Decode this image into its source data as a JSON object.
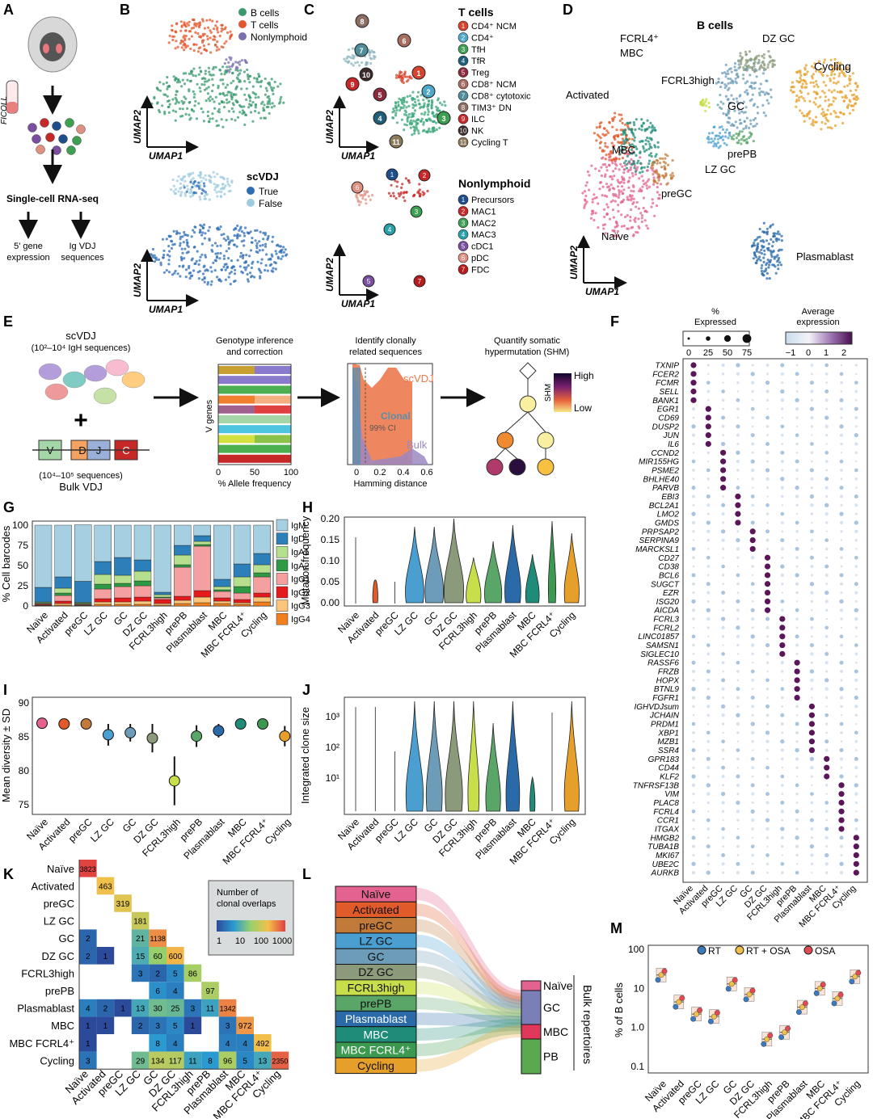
{
  "colors": {
    "b_cells": "#3a9a6e",
    "t_cells": "#e4572e",
    "nonlymphoid": "#7b6fb0",
    "true": "#2e6db4",
    "false": "#9ecbe0",
    "scvdj": "#ec7a4e",
    "clonal": "#5b8ea8",
    "bulk": "#9b88c2",
    "isotypes": [
      "#a6cfe2",
      "#2c7fb8",
      "#b7e08e",
      "#2e9a44",
      "#f5a0a0",
      "#e41a1c",
      "#fdc57a",
      "#f07f1e"
    ],
    "subtypes": [
      "#e3628f",
      "#e05a2a",
      "#c27a3a",
      "#4a9fd0",
      "#6c9cb8",
      "#8a9a7a",
      "#c8de4a",
      "#5aa568",
      "#2a6aa8",
      "#1f8c7a",
      "#3c9a50",
      "#e6a02a"
    ],
    "cohorts": [
      "#3a7bbf",
      "#f0c04a",
      "#e34a53"
    ]
  },
  "panels": [
    "A",
    "B",
    "C",
    "D",
    "E",
    "F",
    "G",
    "H",
    "I",
    "J",
    "K",
    "L",
    "M"
  ],
  "panelA": {
    "ficoll": "FICOLL",
    "seq": "Single-cell RNA-seq",
    "gene_expr": "5' gene\nexpression",
    "vdj": "Ig VDJ\nsequences"
  },
  "panelB": {
    "legend1": [
      "B cells",
      "T cells",
      "Nonlymphoid"
    ],
    "title2": "scVDJ",
    "legend2": [
      "True",
      "False"
    ],
    "axis_x": "UMAP1",
    "axis_y": "UMAP2"
  },
  "panelC": {
    "t_title": "T cells",
    "t_items": [
      {
        "n": "1",
        "label": "CD4⁺ NCM",
        "color": "#d7442e"
      },
      {
        "n": "2",
        "label": "CD4⁺",
        "color": "#4fa7c9"
      },
      {
        "n": "3",
        "label": "TfH",
        "color": "#3e9e52"
      },
      {
        "n": "4",
        "label": "TfR",
        "color": "#1f5f7a"
      },
      {
        "n": "5",
        "label": "Treg",
        "color": "#8a2b3c"
      },
      {
        "n": "6",
        "label": "CD8⁺ NCM",
        "color": "#a66d60"
      },
      {
        "n": "7",
        "label": "CD8⁺ cytotoxic",
        "color": "#4f8e9a"
      },
      {
        "n": "8",
        "label": "TIM3⁺ DN",
        "color": "#8d6e63"
      },
      {
        "n": "9",
        "label": "ILC",
        "color": "#c62828"
      },
      {
        "n": "10",
        "label": "NK",
        "color": "#3a2a2a"
      },
      {
        "n": "11",
        "label": "Cycling T",
        "color": "#8c7a5a"
      }
    ],
    "n_title": "Nonlymphoid",
    "n_items": [
      {
        "n": "1",
        "label": "Precursors",
        "color": "#1f4e8c"
      },
      {
        "n": "2",
        "label": "MAC1",
        "color": "#c62828"
      },
      {
        "n": "3",
        "label": "MAC2",
        "color": "#3e9e52"
      },
      {
        "n": "4",
        "label": "MAC3",
        "color": "#2aa1a8"
      },
      {
        "n": "5",
        "label": "cDC1",
        "color": "#7b4fa0"
      },
      {
        "n": "6",
        "label": "pDC",
        "color": "#e09080"
      },
      {
        "n": "7",
        "label": "FDC",
        "color": "#b71c1c"
      }
    ]
  },
  "panelD": {
    "title": "B cells",
    "labels": [
      "FCRL4⁺",
      "MBC",
      "DZ GC",
      "Activated",
      "FCRL3high",
      "GC",
      "Cycling",
      "MBC",
      "LZ GC",
      "prePB",
      "preGC",
      "Naïve",
      "Plasmablast"
    ]
  },
  "panelE": {
    "scvdj_title": "scVDJ",
    "scvdj_sub": "(10²–10⁴ IgH sequences)",
    "bulk_sub": "(10⁴–10⁵ sequences)",
    "bulk_title": "Bulk VDJ",
    "segments": [
      "V",
      "D",
      "J",
      "C"
    ],
    "step1_title": "Genotype inference\nand correction",
    "step1_ylabel": "V genes",
    "step1_xlabel": "% Allele frequency",
    "step1_ticks": [
      "0",
      "50",
      "100"
    ],
    "step2_title": "Identify clonally\nrelated sequences",
    "step2_labels": [
      "scVDJ",
      "Clonal",
      "99% CI",
      "Bulk"
    ],
    "step2_xlabel": "Hamming distance",
    "step2_ticks": [
      "0",
      "0.2",
      "0.4",
      "0.6"
    ],
    "step3_title": "Quantify somatic\nhypermutation (SHM)",
    "shm_high": "High",
    "shm_low": "Low",
    "shm_label": "SHM"
  },
  "cell_types": [
    "Naïve",
    "Activated",
    "preGC",
    "LZ GC",
    "GC",
    "DZ GC",
    "FCRL3high",
    "prePB",
    "Plasmablast",
    "MBC",
    "MBC FCRL4⁺",
    "Cycling"
  ],
  "panelF": {
    "pct_title": "%\nExpressed",
    "pct_ticks": [
      "0",
      "25",
      "50",
      "75"
    ],
    "avg_title": "Average\nexpression",
    "avg_ticks": [
      "−1",
      "0",
      "1",
      "2"
    ],
    "genes": [
      "TXNIP",
      "FCER2",
      "FCMR",
      "SELL",
      "BANK1",
      "EGR1",
      "CD69",
      "DUSP2",
      "JUN",
      "IL6",
      "CCND2",
      "MIR155HG",
      "PSME2",
      "BHLHE40",
      "PARVB",
      "EBI3",
      "BCL2A1",
      "LMO2",
      "GMDS",
      "PRPSAP2",
      "SERPINA9",
      "MARCKSL1",
      "CD27",
      "CD38",
      "BCL6",
      "SUGCT",
      "EZR",
      "ISG20",
      "AICDA",
      "FCRL3",
      "FCRL2",
      "LINC01857",
      "SAMSN1",
      "SIGLEC10",
      "RASSF6",
      "FRZB",
      "HOPX",
      "BTNL9",
      "FGFR1",
      "IGHVDJsum",
      "JCHAIN",
      "PRDM1",
      "XBP1",
      "MZB1",
      "SSR4",
      "GPR183",
      "CD44",
      "KLF2",
      "TNFRSF13B",
      "VIM",
      "PLAC8",
      "FCRL4",
      "CCR1",
      "ITGAX",
      "HMGB2",
      "TUBA1B",
      "MKI67",
      "UBE2C",
      "AURKB"
    ],
    "gene_group": [
      0,
      0,
      0,
      0,
      0,
      1,
      1,
      1,
      1,
      1,
      2,
      2,
      2,
      2,
      2,
      3,
      3,
      3,
      3,
      4,
      4,
      4,
      5,
      5,
      5,
      5,
      5,
      5,
      5,
      6,
      6,
      6,
      6,
      6,
      7,
      7,
      7,
      7,
      7,
      8,
      8,
      8,
      8,
      8,
      8,
      9,
      9,
      9,
      10,
      10,
      10,
      10,
      10,
      10,
      11,
      11,
      11,
      11,
      11
    ]
  },
  "panelG": {
    "ylabel": "% Cell barcodes",
    "yticks": [
      "0",
      "25",
      "50",
      "75",
      "100"
    ],
    "isotypes": [
      "IgM",
      "IgD",
      "IgA1",
      "IgA2",
      "IgG1",
      "IgG2",
      "IgG3",
      "IgG4"
    ],
    "stacks": [
      [
        77,
        18,
        1,
        1,
        1,
        1,
        0.5,
        0.5
      ],
      [
        64,
        14,
        6,
        3,
        7,
        3,
        2,
        1
      ],
      [
        70,
        26,
        1,
        1,
        1,
        0.5,
        0.5,
        0.5
      ],
      [
        45,
        16,
        12,
        6,
        12,
        4,
        3,
        2
      ],
      [
        40,
        22,
        10,
        4,
        14,
        5,
        3,
        2
      ],
      [
        43,
        14,
        12,
        6,
        14,
        5,
        4,
        2
      ],
      [
        83,
        3,
        3,
        1,
        2,
        5,
        2,
        1
      ],
      [
        25,
        12,
        12,
        3,
        36,
        5,
        4,
        3
      ],
      [
        13,
        7,
        4,
        2,
        55,
        8,
        7,
        4
      ],
      [
        67,
        9,
        4,
        2,
        8,
        4,
        3,
        3
      ],
      [
        48,
        16,
        12,
        8,
        8,
        4,
        2,
        2
      ],
      [
        35,
        14,
        10,
        5,
        20,
        5,
        6,
        5
      ]
    ]
  },
  "panelH": {
    "ylabel": "Mutation frequency",
    "yticks": [
      "0.00",
      "0.05",
      "0.10",
      "0.15",
      "0.20"
    ]
  },
  "panelI": {
    "ylabel": "Mean diversity ± SD",
    "yticks": [
      "75",
      "80",
      "85",
      "90"
    ],
    "means": [
      87.0,
      86.9,
      86.9,
      85.3,
      85.6,
      84.8,
      78.5,
      85.1,
      85.9,
      86.9,
      86.9,
      85.1
    ],
    "sd": [
      0.4,
      0.4,
      0.4,
      1.6,
      1.3,
      2.1,
      3.6,
      1.6,
      1.0,
      0.4,
      0.4,
      1.5
    ]
  },
  "panelJ": {
    "ylabel": "Integrated clone size",
    "yticks": [
      "10¹",
      "10²",
      "10³"
    ]
  },
  "panelK": {
    "legend_title": "Number of\nclonal overlaps",
    "legend_ticks": [
      "1",
      "10",
      "100",
      "1000"
    ],
    "rows": [
      "Naïve",
      "Activated",
      "preGC",
      "LZ GC",
      "GC",
      "DZ GC",
      "FCRL3high",
      "prePB",
      "Plasmablast",
      "MBC",
      "MBC FCRL4⁺",
      "Cycling"
    ],
    "matrix": [
      [
        3823
      ],
      [
        null,
        463
      ],
      [
        null,
        null,
        319
      ],
      [
        null,
        null,
        null,
        181
      ],
      [
        2,
        null,
        null,
        21,
        1138
      ],
      [
        2,
        1,
        null,
        15,
        60,
        600
      ],
      [
        null,
        null,
        null,
        3,
        2,
        5,
        86
      ],
      [
        null,
        null,
        null,
        null,
        6,
        4,
        null,
        97
      ],
      [
        4,
        2,
        1,
        13,
        30,
        25,
        3,
        11,
        1342
      ],
      [
        1,
        1,
        null,
        2,
        3,
        5,
        1,
        null,
        3,
        972
      ],
      [
        1,
        null,
        null,
        null,
        8,
        4,
        null,
        null,
        4,
        4,
        492
      ],
      [
        3,
        null,
        null,
        29,
        134,
        117,
        11,
        8,
        96,
        5,
        13,
        2350
      ]
    ]
  },
  "panelL": {
    "left": [
      "Naïve",
      "Activated",
      "preGC",
      "LZ GC",
      "GC",
      "DZ GC",
      "FCRL3high",
      "prePB",
      "Plasmablast",
      "MBC",
      "MBC FCRL4⁺",
      "Cycling"
    ],
    "right": [
      "Naïve",
      "GC",
      "MBC",
      "PB"
    ],
    "right_title": "Bulk repertoires"
  },
  "panelM": {
    "ylabel": "% of B cells",
    "yticks": [
      "0.1",
      "1.0",
      "10",
      "100"
    ],
    "legend": [
      "RT",
      "RT + OSA",
      "OSA"
    ],
    "medians": [
      22,
      4.5,
      2.2,
      1.9,
      13,
      7,
      0.5,
      0.75,
      3.3,
      10,
      5.5,
      20
    ]
  }
}
